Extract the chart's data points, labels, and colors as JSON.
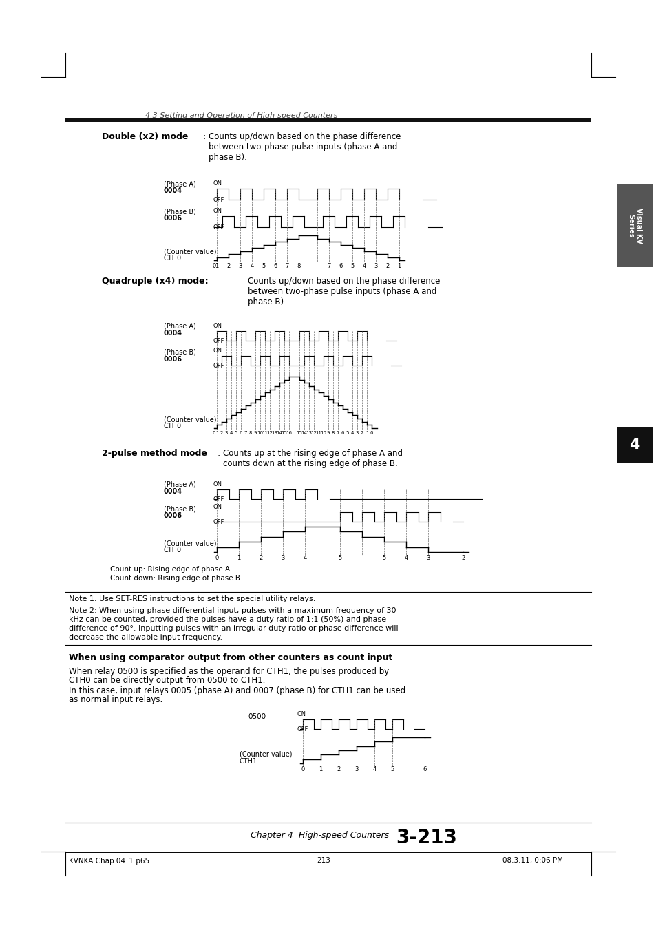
{
  "page_title": "4.3 Setting and Operation of High-speed Counters",
  "chapter_footer": "Chapter 4  High-speed Counters",
  "page_number": "3-213",
  "footer_file": "KVNKA Chap 04_1.p65",
  "footer_page": "213",
  "footer_date": "08.3.11, 0:06 PM",
  "bg_color": "#ffffff",
  "section_bar_color": "#1a1a1a",
  "note1": "Note 1: Use SET-RES instructions to set the special utility relays.",
  "note2_line1": "Note 2: When using phase differential input, pulses with a maximum frequency of 30",
  "note2_line2": "kHz can be counted, provided the pulses have a duty ratio of 1:1 (50%) and phase",
  "note2_line3": "difference of 90°. Inputting pulses with an irregular duty ratio or phase difference will",
  "note2_line4": "decrease the allowable input frequency.",
  "comp_heading": "When using comparator output from other counters as count input",
  "comp_text1": "When relay 0500 is specified as the operand for CTH1, the pulses produced by",
  "comp_text2": "CTH0 can be directly output from 0500 to CTH1.",
  "comp_text3": "In this case, input relays 0005 (phase A) and 0007 (phase B) for CTH1 can be used",
  "comp_text4": "as normal input relays."
}
